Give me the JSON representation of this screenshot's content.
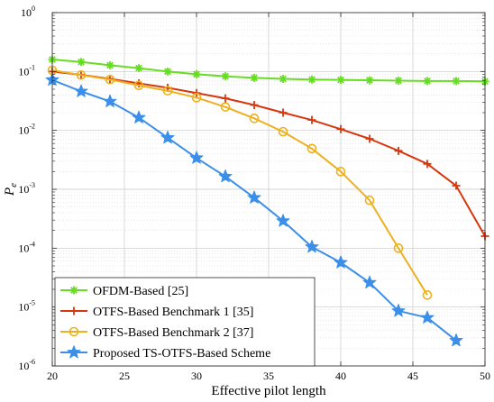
{
  "chart_data": {
    "type": "line",
    "xlabel": "Effective pilot length",
    "ylabel": "P",
    "ylabel_subscript": "e",
    "xlim": [
      20,
      50
    ],
    "ylim_log10": [
      -6,
      0
    ],
    "yscale": "log",
    "grid": true,
    "minor_grid": true,
    "legend_position": "bottom-left",
    "x_ticks": [
      20,
      25,
      30,
      35,
      40,
      45,
      50
    ],
    "y_ticks_exponents": [
      0,
      -1,
      -2,
      -3,
      -4,
      -5,
      -6
    ],
    "y_tick_base": "10",
    "series": [
      {
        "name": "OFDM-Based [25]",
        "color": "#66dd22",
        "marker": "asterisk",
        "x": [
          20,
          22,
          24,
          26,
          28,
          30,
          32,
          34,
          36,
          38,
          40,
          42,
          44,
          46,
          48,
          50
        ],
        "y": [
          0.16,
          0.145,
          0.128,
          0.114,
          0.1,
          0.09,
          0.083,
          0.078,
          0.075,
          0.073,
          0.072,
          0.071,
          0.07,
          0.069,
          0.069,
          0.068
        ]
      },
      {
        "name": "OTFS-Based Benchmark 1 [35]",
        "color": "#d6370f",
        "marker": "plus",
        "x": [
          20,
          22,
          24,
          26,
          28,
          30,
          32,
          34,
          36,
          38,
          40,
          42,
          44,
          46,
          48,
          50
        ],
        "y": [
          0.1,
          0.088,
          0.075,
          0.063,
          0.053,
          0.043,
          0.035,
          0.027,
          0.02,
          0.015,
          0.0105,
          0.0072,
          0.0045,
          0.0027,
          0.00115,
          0.00016
        ]
      },
      {
        "name": "OTFS-Based Benchmark 2 [37]",
        "color": "#edb120",
        "marker": "circle",
        "x": [
          20,
          22,
          24,
          26,
          28,
          30,
          32,
          34,
          36,
          38,
          40,
          42,
          44,
          46
        ],
        "y": [
          0.105,
          0.087,
          0.073,
          0.058,
          0.047,
          0.036,
          0.025,
          0.016,
          0.0095,
          0.0049,
          0.002,
          0.00065,
          0.0001,
          1.6e-05
        ]
      },
      {
        "name": "Proposed TS-OTFS-Based Scheme",
        "color": "#3b8fe8",
        "marker": "pentagram",
        "x": [
          20,
          22,
          24,
          26,
          28,
          30,
          32,
          34,
          36,
          38,
          40,
          42,
          44,
          46,
          48
        ],
        "y": [
          0.072,
          0.046,
          0.031,
          0.0165,
          0.0075,
          0.0034,
          0.00165,
          0.00072,
          0.00029,
          0.000105,
          5.7e-05,
          2.6e-05,
          8.6e-06,
          6.6e-06,
          2.7e-06
        ]
      }
    ]
  }
}
